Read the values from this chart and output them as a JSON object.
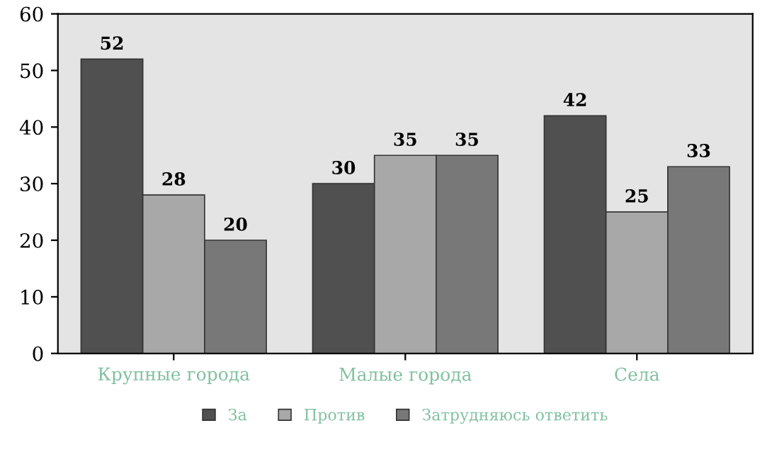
{
  "chart_data": {
    "type": "bar",
    "categories": [
      "Крупные города",
      "Малые города",
      "Села"
    ],
    "series": [
      {
        "name": "За",
        "color": "#505050",
        "values": [
          52,
          30,
          42
        ]
      },
      {
        "name": "Против",
        "color": "#a8a8a8",
        "values": [
          28,
          35,
          25
        ]
      },
      {
        "name": "Затрудняюсь ответить",
        "color": "#787878",
        "values": [
          20,
          35,
          33
        ]
      }
    ],
    "ylim": [
      0,
      60
    ],
    "yticks": [
      0,
      10,
      20,
      30,
      40,
      50,
      60
    ],
    "data_labels": true,
    "legend": "bottom",
    "grid": false
  }
}
